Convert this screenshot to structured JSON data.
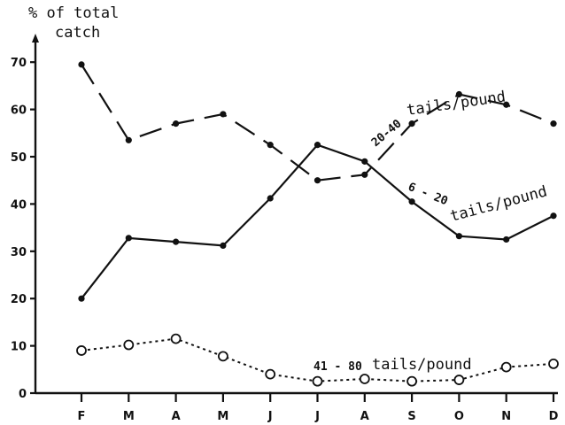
{
  "chart_data": {
    "type": "line",
    "ylabel_line1": "% of total",
    "ylabel_line2": "catch",
    "ylim": [
      0,
      75
    ],
    "yticks": [
      "0",
      "10",
      "20",
      "30",
      "40",
      "50",
      "60",
      "70"
    ],
    "categories": [
      "F",
      "M",
      "A",
      "M",
      "J",
      "J",
      "A",
      "S",
      "O",
      "N",
      "D"
    ],
    "grid": false,
    "series": [
      {
        "name": "20-40 tails/pound",
        "label_num": "20-40",
        "label_text": "tails/pound",
        "style": "dashed",
        "marker": "filled",
        "values": [
          69.5,
          53.5,
          57,
          59,
          52.5,
          45,
          46.2,
          57,
          63.2,
          61,
          57
        ]
      },
      {
        "name": "6-20 tails/pound",
        "label_num": "6 - 20",
        "label_text": "tails/pound",
        "style": "solid",
        "marker": "filled",
        "values": [
          20,
          32.8,
          32,
          31.2,
          41.2,
          52.5,
          49,
          40.5,
          33.2,
          32.5,
          37.5
        ]
      },
      {
        "name": "41-80 tails/pound",
        "label_num": "41 - 80",
        "label_text": "tails/pound",
        "style": "dotted",
        "marker": "open",
        "values": [
          9,
          10.2,
          11.5,
          7.8,
          4,
          2.5,
          3,
          2.5,
          2.8,
          5.5,
          6.2
        ]
      }
    ]
  }
}
